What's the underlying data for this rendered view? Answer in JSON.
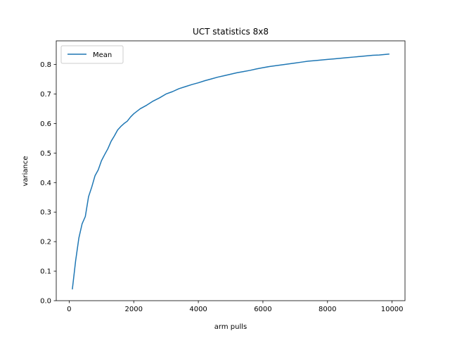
{
  "chart_data": {
    "type": "line",
    "title": "UCT statistics 8x8",
    "xlabel": "arm pulls",
    "ylabel": "variance",
    "xlim": [
      -400,
      10400
    ],
    "ylim": [
      0.0,
      0.88
    ],
    "xticks": [
      0,
      2000,
      4000,
      6000,
      8000,
      10000
    ],
    "xtick_labels": [
      "0",
      "2000",
      "4000",
      "6000",
      "8000",
      "10000"
    ],
    "yticks": [
      0.0,
      0.1,
      0.2,
      0.3,
      0.4,
      0.5,
      0.6,
      0.7,
      0.8
    ],
    "ytick_labels": [
      "0.0",
      "0.1",
      "0.2",
      "0.3",
      "0.4",
      "0.5",
      "0.6",
      "0.7",
      "0.8"
    ],
    "grid": false,
    "legend_position": "top-left",
    "series": [
      {
        "name": "Mean",
        "color": "#1f77b4",
        "x": [
          100,
          200,
          300,
          400,
          500,
          600,
          700,
          800,
          900,
          1000,
          1100,
          1200,
          1300,
          1400,
          1500,
          1600,
          1700,
          1800,
          1900,
          2000,
          2200,
          2400,
          2600,
          2800,
          3000,
          3200,
          3400,
          3600,
          3800,
          4000,
          4200,
          4400,
          4600,
          4800,
          5000,
          5200,
          5400,
          5600,
          5800,
          6000,
          6200,
          6400,
          6600,
          6800,
          7000,
          7200,
          7400,
          7600,
          7800,
          8000,
          8200,
          8400,
          8600,
          8800,
          9000,
          9200,
          9400,
          9600,
          9800,
          9900
        ],
        "values": [
          0.04,
          0.135,
          0.212,
          0.26,
          0.285,
          0.352,
          0.385,
          0.423,
          0.443,
          0.474,
          0.495,
          0.515,
          0.54,
          0.558,
          0.578,
          0.59,
          0.6,
          0.608,
          0.622,
          0.633,
          0.65,
          0.662,
          0.676,
          0.687,
          0.7,
          0.708,
          0.718,
          0.725,
          0.732,
          0.738,
          0.745,
          0.751,
          0.757,
          0.762,
          0.767,
          0.772,
          0.776,
          0.78,
          0.785,
          0.789,
          0.793,
          0.796,
          0.799,
          0.802,
          0.805,
          0.808,
          0.811,
          0.813,
          0.815,
          0.817,
          0.819,
          0.821,
          0.823,
          0.825,
          0.827,
          0.829,
          0.831,
          0.832,
          0.834,
          0.835
        ]
      }
    ]
  }
}
